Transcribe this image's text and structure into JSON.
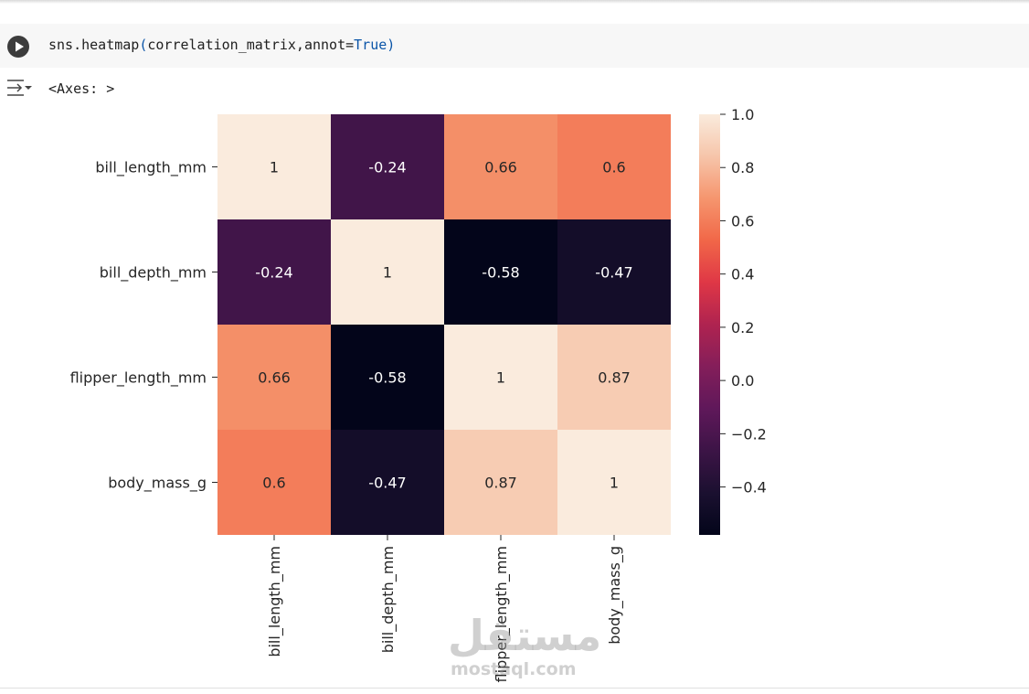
{
  "cell": {
    "code_fn": "sns.heatmap",
    "code_open": "(",
    "code_args": "correlation_matrix,annot=",
    "code_value": "True",
    "code_close": ")",
    "output_text": "<Axes: >"
  },
  "chart_data": {
    "type": "heatmap",
    "rows": [
      "bill_length_mm",
      "bill_depth_mm",
      "flipper_length_mm",
      "body_mass_g"
    ],
    "columns": [
      "bill_length_mm",
      "bill_depth_mm",
      "flipper_length_mm",
      "body_mass_g"
    ],
    "values": [
      [
        1,
        -0.24,
        0.66,
        0.6
      ],
      [
        -0.24,
        1,
        -0.58,
        -0.47
      ],
      [
        0.66,
        -0.58,
        1,
        0.87
      ],
      [
        0.6,
        -0.47,
        0.87,
        1
      ]
    ],
    "annotations": [
      [
        "1",
        "-0.24",
        "0.66",
        "0.6"
      ],
      [
        "-0.24",
        "1",
        "-0.58",
        "-0.47"
      ],
      [
        "0.66",
        "-0.58",
        "1",
        "0.87"
      ],
      [
        "0.6",
        "-0.47",
        "0.87",
        "1"
      ]
    ],
    "colormap": "rocket",
    "vmin": -0.58,
    "vmax": 1.0,
    "colorbar_ticks": [
      1.0,
      0.8,
      0.6,
      0.4,
      0.2,
      0.0,
      -0.2,
      -0.4
    ],
    "colorbar_tick_labels": [
      "1.0",
      "0.8",
      "0.6",
      "0.4",
      "0.2",
      "0.0",
      "−0.2",
      "−0.4"
    ]
  },
  "watermark": {
    "arabic": "مستقل",
    "latin": "mostaql.com"
  }
}
